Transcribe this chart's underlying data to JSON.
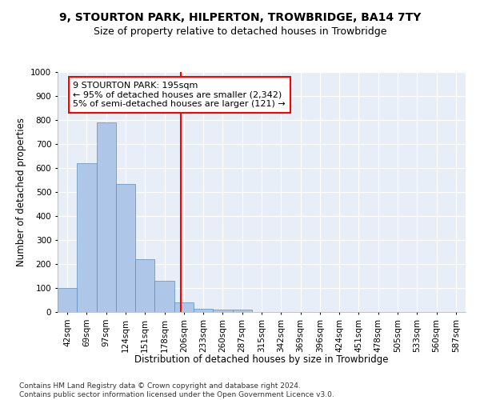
{
  "title": "9, STOURTON PARK, HILPERTON, TROWBRIDGE, BA14 7TY",
  "subtitle": "Size of property relative to detached houses in Trowbridge",
  "xlabel": "Distribution of detached houses by size in Trowbridge",
  "ylabel": "Number of detached properties",
  "categories": [
    "42sqm",
    "69sqm",
    "97sqm",
    "124sqm",
    "151sqm",
    "178sqm",
    "206sqm",
    "233sqm",
    "260sqm",
    "287sqm",
    "315sqm",
    "342sqm",
    "369sqm",
    "396sqm",
    "424sqm",
    "451sqm",
    "478sqm",
    "505sqm",
    "533sqm",
    "560sqm",
    "587sqm"
  ],
  "values": [
    100,
    620,
    790,
    535,
    220,
    130,
    40,
    15,
    10,
    10,
    0,
    0,
    0,
    0,
    0,
    0,
    0,
    0,
    0,
    0,
    0
  ],
  "bar_color": "#aec6e8",
  "bar_edge_color": "#5a8fc0",
  "vline_color": "red",
  "annotation_line1": "9 STOURTON PARK: 195sqm",
  "annotation_line2": "← 95% of detached houses are smaller (2,342)",
  "annotation_line3": "5% of semi-detached houses are larger (121) →",
  "ylim": [
    0,
    1000
  ],
  "yticks": [
    0,
    100,
    200,
    300,
    400,
    500,
    600,
    700,
    800,
    900,
    1000
  ],
  "footnote": "Contains HM Land Registry data © Crown copyright and database right 2024.\nContains public sector information licensed under the Open Government Licence v3.0.",
  "bg_color": "#e8eef8",
  "grid_color": "#ffffff",
  "title_fontsize": 10,
  "subtitle_fontsize": 9,
  "axis_label_fontsize": 8.5,
  "tick_fontsize": 7.5,
  "annotation_fontsize": 8,
  "footnote_fontsize": 6.5
}
